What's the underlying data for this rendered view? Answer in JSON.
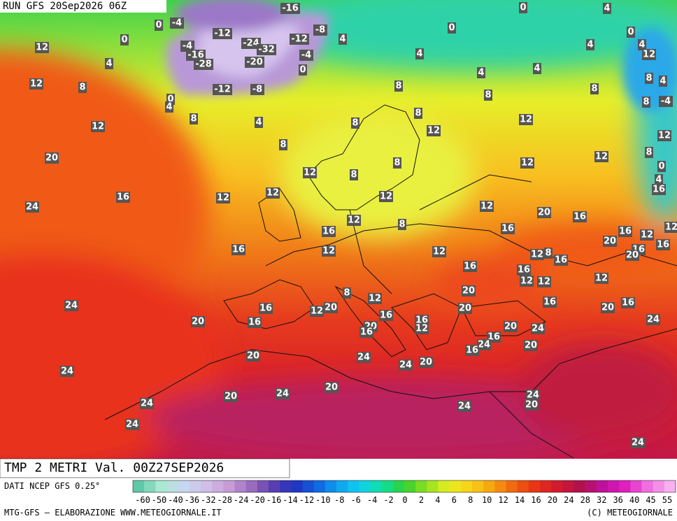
{
  "header": {
    "run": "RUN GFS 20Sep2026 06Z"
  },
  "footer": {
    "field": "TMP 2 METRI Val. 00Z27SEP2026",
    "source": "DATI NCEP GFS 0.25°",
    "credit": "MTG-GFS — ELABORAZIONE WWW.METEOGIORNALE.IT",
    "copyright": "(C) METEOGIORNALE"
  },
  "colorbar": {
    "ticks": [
      -60,
      -50,
      -40,
      -36,
      -32,
      -28,
      -24,
      -20,
      -16,
      -14,
      -12,
      -10,
      -8,
      -6,
      -4,
      -2,
      0,
      2,
      4,
      6,
      8,
      10,
      12,
      14,
      16,
      20,
      24,
      28,
      32,
      36,
      40,
      45,
      55
    ]
  },
  "map_labels": [
    -4,
    0,
    0,
    -12,
    -16,
    -8,
    -12,
    -24,
    -32,
    -4,
    -16,
    -28,
    -20,
    -4,
    0,
    4,
    0,
    4,
    0,
    0,
    4,
    4,
    12,
    4,
    4,
    12,
    12,
    8,
    4,
    4,
    8,
    4,
    8,
    8,
    8,
    8,
    -4,
    -12,
    -8,
    0,
    4,
    8,
    4,
    8,
    8,
    12,
    12,
    12,
    12,
    8,
    12,
    8,
    0,
    8,
    12,
    20,
    12,
    8,
    4,
    16,
    12,
    12,
    16,
    12,
    24,
    12,
    20,
    16,
    12,
    8,
    16,
    16,
    16,
    12,
    12,
    20,
    16,
    16,
    12,
    12,
    12,
    8,
    16,
    16,
    20,
    16,
    16,
    12,
    12,
    12,
    8,
    12,
    20,
    16,
    24,
    16,
    12,
    20,
    16,
    20,
    20,
    16,
    20,
    16,
    16,
    12,
    20,
    16,
    20,
    24,
    24,
    16,
    24,
    16,
    20,
    24,
    20,
    24,
    24,
    20,
    20,
    24,
    20,
    24,
    20,
    24,
    24,
    24,
    24
  ]
}
